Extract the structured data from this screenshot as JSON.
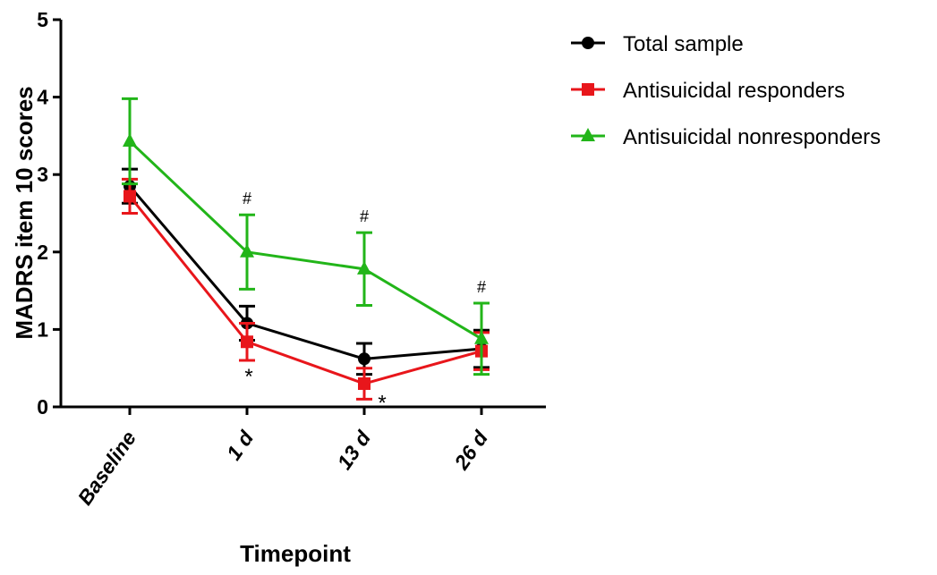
{
  "chart_data": {
    "type": "line",
    "title": "",
    "xlabel": "Timepoint",
    "ylabel": "MADRS item 10 scores",
    "ylim": [
      0,
      5
    ],
    "yticks": [
      "0",
      "1",
      "2",
      "3",
      "4",
      "5"
    ],
    "categories": [
      "Baseline",
      "1 d",
      "13 d",
      "26 d"
    ],
    "legend_position": "top-right",
    "series": [
      {
        "name": "Total sample",
        "color": "#000000",
        "marker": "circle",
        "values": [
          2.85,
          1.08,
          0.62,
          0.75
        ],
        "errors": [
          0.22,
          0.22,
          0.2,
          0.24
        ]
      },
      {
        "name": "Antisuicidal responders",
        "color": "#e8161b",
        "marker": "square",
        "values": [
          2.72,
          0.84,
          0.3,
          0.72
        ],
        "errors": [
          0.22,
          0.24,
          0.2,
          0.24
        ]
      },
      {
        "name": "Antisuicidal nonresponders",
        "color": "#22b519",
        "marker": "triangle",
        "values": [
          3.43,
          2.0,
          1.78,
          0.88
        ],
        "errors": [
          0.55,
          0.48,
          0.47,
          0.46
        ]
      }
    ],
    "annotations": [
      {
        "category": 1,
        "text": "#",
        "position": "above"
      },
      {
        "category": 2,
        "text": "#",
        "position": "above"
      },
      {
        "category": 3,
        "text": "#",
        "position": "above"
      },
      {
        "category": 1,
        "text": "*",
        "position": "below"
      },
      {
        "category": 2,
        "text": "*",
        "position": "below-right"
      }
    ]
  }
}
